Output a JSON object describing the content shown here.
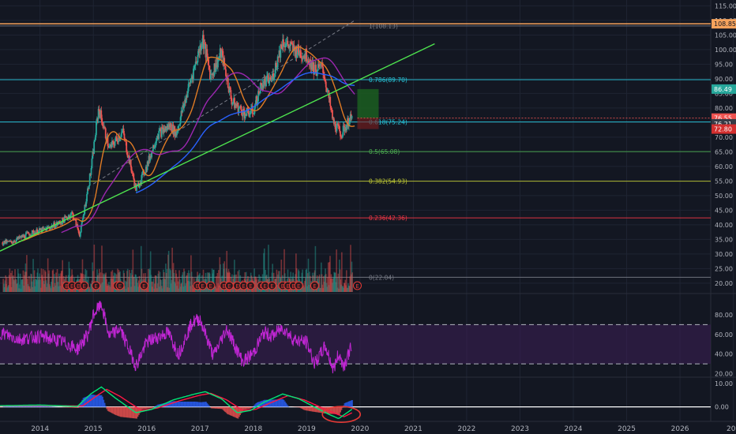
{
  "colors": {
    "background": "#131722",
    "grid": "#1f2433",
    "axis_text": "#b2b5be",
    "candle_up": "#26a69a",
    "candle_down": "#ef5350",
    "fib_1": "#787b86",
    "fib_0786": "#26c6da",
    "fib_0618": "#26c6da",
    "fib_05": "#4caf50",
    "fib_0382": "#c0ca33",
    "fib_0236": "#f23645",
    "fib_0": "#787b86",
    "top_line": "#f7a35c",
    "trendline": "#4ee44e",
    "ema_orange": "#e07b24",
    "ma_purple": "#9c27b0",
    "ma_blue": "#2962ff",
    "rsi_line": "#c026d3",
    "rsi_band": "#3d1f55",
    "macd_line": "#00e676",
    "signal_line": "#ff1744",
    "circle_mark": "#e53935",
    "target_box": "#1b5e20",
    "earnings_marker": "#e53935"
  },
  "chart_data": [
    {
      "type": "candlestick",
      "pane": "price",
      "x_start": "2013-06",
      "x_end": "2019-10",
      "x_tick_labels": [
        "2014",
        "2015",
        "2016",
        "2017",
        "2018",
        "2019",
        "2020",
        "2021",
        "2022",
        "2023",
        "2024",
        "2025",
        "2026",
        "202"
      ],
      "y_tick_labels": [
        "115.00",
        "110.00",
        "105.00",
        "100.00",
        "95.00",
        "90.00",
        "85.00",
        "80.00",
        "75.00",
        "70.00",
        "65.00",
        "60.00",
        "55.00",
        "50.00",
        "45.00",
        "40.00",
        "35.00",
        "30.00",
        "25.00",
        "20.00"
      ],
      "ylim": [
        17,
        117
      ],
      "anchors": [
        {
          "x": 2013.45,
          "y": 34.0
        },
        {
          "x": 2013.8,
          "y": 37.0
        },
        {
          "x": 2014.1,
          "y": 38.5
        },
        {
          "x": 2014.4,
          "y": 41.0
        },
        {
          "x": 2014.6,
          "y": 44.0
        },
        {
          "x": 2014.75,
          "y": 36.5
        },
        {
          "x": 2014.95,
          "y": 58.0
        },
        {
          "x": 2015.1,
          "y": 80.0
        },
        {
          "x": 2015.3,
          "y": 66.0
        },
        {
          "x": 2015.55,
          "y": 72.0
        },
        {
          "x": 2015.8,
          "y": 52.0
        },
        {
          "x": 2016.0,
          "y": 60.0
        },
        {
          "x": 2016.2,
          "y": 71.0
        },
        {
          "x": 2016.45,
          "y": 74.0
        },
        {
          "x": 2016.55,
          "y": 71.0
        },
        {
          "x": 2016.8,
          "y": 88.0
        },
        {
          "x": 2017.05,
          "y": 104.0
        },
        {
          "x": 2017.2,
          "y": 91.0
        },
        {
          "x": 2017.4,
          "y": 99.0
        },
        {
          "x": 2017.6,
          "y": 82.0
        },
        {
          "x": 2017.85,
          "y": 78.0
        },
        {
          "x": 2018.0,
          "y": 79.0
        },
        {
          "x": 2018.15,
          "y": 88.0
        },
        {
          "x": 2018.35,
          "y": 90.0
        },
        {
          "x": 2018.55,
          "y": 103.0
        },
        {
          "x": 2018.75,
          "y": 100.0
        },
        {
          "x": 2019.0,
          "y": 98.0
        },
        {
          "x": 2019.15,
          "y": 93.0
        },
        {
          "x": 2019.3,
          "y": 94.0
        },
        {
          "x": 2019.5,
          "y": 75.0
        },
        {
          "x": 2019.65,
          "y": 71.0
        },
        {
          "x": 2019.8,
          "y": 76.0
        }
      ],
      "fib_levels": [
        {
          "ratio_label": "1(108.13)",
          "value": 108.13
        },
        {
          "ratio_label": "0.786(89.70)",
          "value": 89.7
        },
        {
          "ratio_label": "0.618(75.24)",
          "value": 75.24
        },
        {
          "ratio_label": "0.5(65.08)",
          "value": 65.08
        },
        {
          "ratio_label": "0.382(54.93)",
          "value": 54.93
        },
        {
          "ratio_label": "0.236(42.36)",
          "value": 42.36
        },
        {
          "ratio_label": "0(22.04)",
          "value": 22.04
        }
      ],
      "horizontal_line": {
        "value": 108.85
      },
      "trendline": {
        "x1": 2013.25,
        "y1": 31.0,
        "x2": 2021.4,
        "y2": 102.0
      },
      "dashed_projection": {
        "x1": 2015.0,
        "y1": 54.0,
        "x2": 2019.9,
        "y2": 110.0
      },
      "target_box": {
        "x1": 2019.95,
        "x2": 2020.35,
        "y_top": 86.49,
        "y_bottom": 76.55
      },
      "price_labels": [
        "108.85",
        "86.49",
        "76.55",
        "76.21",
        "72.80"
      ],
      "earnings_label": "E",
      "earnings_dates": [
        2014.5,
        2014.6,
        2014.72,
        2014.83,
        2015.05,
        2015.45,
        2015.5,
        2015.95,
        2016.95,
        2017.05,
        2017.2,
        2017.45,
        2017.55,
        2017.7,
        2017.82,
        2017.95,
        2018.15,
        2018.22,
        2018.35,
        2018.55,
        2018.65,
        2018.75,
        2018.85,
        2019.15
      ]
    },
    {
      "type": "line",
      "pane": "rsi",
      "y_tick_labels": [
        "80.00",
        "60.00",
        "40.00",
        "20.00"
      ],
      "ylim": [
        18,
        100
      ],
      "band": [
        30,
        70
      ],
      "anchors": [
        {
          "x": 2013.25,
          "y": 62
        },
        {
          "x": 2013.6,
          "y": 55
        },
        {
          "x": 2014.0,
          "y": 58
        },
        {
          "x": 2014.4,
          "y": 53
        },
        {
          "x": 2014.7,
          "y": 45
        },
        {
          "x": 2014.9,
          "y": 60
        },
        {
          "x": 2015.0,
          "y": 80
        },
        {
          "x": 2015.15,
          "y": 91
        },
        {
          "x": 2015.3,
          "y": 58
        },
        {
          "x": 2015.5,
          "y": 66
        },
        {
          "x": 2015.8,
          "y": 28
        },
        {
          "x": 2016.0,
          "y": 52
        },
        {
          "x": 2016.4,
          "y": 62
        },
        {
          "x": 2016.6,
          "y": 40
        },
        {
          "x": 2016.85,
          "y": 72
        },
        {
          "x": 2017.0,
          "y": 76
        },
        {
          "x": 2017.25,
          "y": 38
        },
        {
          "x": 2017.5,
          "y": 66
        },
        {
          "x": 2017.8,
          "y": 32
        },
        {
          "x": 2018.0,
          "y": 41
        },
        {
          "x": 2018.2,
          "y": 62
        },
        {
          "x": 2018.35,
          "y": 58
        },
        {
          "x": 2018.55,
          "y": 67
        },
        {
          "x": 2018.75,
          "y": 55
        },
        {
          "x": 2019.0,
          "y": 52
        },
        {
          "x": 2019.15,
          "y": 30
        },
        {
          "x": 2019.35,
          "y": 48
        },
        {
          "x": 2019.5,
          "y": 24
        },
        {
          "x": 2019.6,
          "y": 40
        },
        {
          "x": 2019.7,
          "y": 28
        },
        {
          "x": 2019.85,
          "y": 50
        }
      ]
    },
    {
      "type": "line",
      "pane": "macd",
      "y_tick_labels": [
        "10.00",
        "0.00"
      ],
      "ylim": [
        -5.5,
        12
      ],
      "macd_anchors": [
        {
          "x": 2013.25,
          "y": 0.5
        },
        {
          "x": 2014.0,
          "y": 0.8
        },
        {
          "x": 2014.7,
          "y": 0.2
        },
        {
          "x": 2014.95,
          "y": 5.5
        },
        {
          "x": 2015.15,
          "y": 8.5
        },
        {
          "x": 2015.4,
          "y": 4.0
        },
        {
          "x": 2015.8,
          "y": -2.5
        },
        {
          "x": 2016.1,
          "y": -1.0
        },
        {
          "x": 2016.5,
          "y": 3.0
        },
        {
          "x": 2016.9,
          "y": 5.5
        },
        {
          "x": 2017.1,
          "y": 6.5
        },
        {
          "x": 2017.4,
          "y": 3.5
        },
        {
          "x": 2017.7,
          "y": -2.5
        },
        {
          "x": 2017.95,
          "y": -1.5
        },
        {
          "x": 2018.2,
          "y": 2.0
        },
        {
          "x": 2018.55,
          "y": 5.5
        },
        {
          "x": 2018.85,
          "y": 3.5
        },
        {
          "x": 2019.1,
          "y": 0.5
        },
        {
          "x": 2019.4,
          "y": -3.0
        },
        {
          "x": 2019.6,
          "y": -5.0
        },
        {
          "x": 2019.85,
          "y": -1.0
        }
      ],
      "signal_anchors": [
        {
          "x": 2013.25,
          "y": 0.4
        },
        {
          "x": 2014.0,
          "y": 0.6
        },
        {
          "x": 2014.8,
          "y": 0.4
        },
        {
          "x": 2015.05,
          "y": 4.5
        },
        {
          "x": 2015.25,
          "y": 7.5
        },
        {
          "x": 2015.5,
          "y": 4.5
        },
        {
          "x": 2015.9,
          "y": -1.5
        },
        {
          "x": 2016.2,
          "y": -0.5
        },
        {
          "x": 2016.6,
          "y": 2.5
        },
        {
          "x": 2017.0,
          "y": 5.0
        },
        {
          "x": 2017.2,
          "y": 5.8
        },
        {
          "x": 2017.5,
          "y": 3.0
        },
        {
          "x": 2017.8,
          "y": -1.5
        },
        {
          "x": 2018.05,
          "y": -1.0
        },
        {
          "x": 2018.3,
          "y": 1.5
        },
        {
          "x": 2018.65,
          "y": 4.8
        },
        {
          "x": 2018.95,
          "y": 3.0
        },
        {
          "x": 2019.2,
          "y": 0.5
        },
        {
          "x": 2019.5,
          "y": -2.5
        },
        {
          "x": 2019.7,
          "y": -4.2
        },
        {
          "x": 2019.85,
          "y": -2.5
        }
      ]
    }
  ]
}
